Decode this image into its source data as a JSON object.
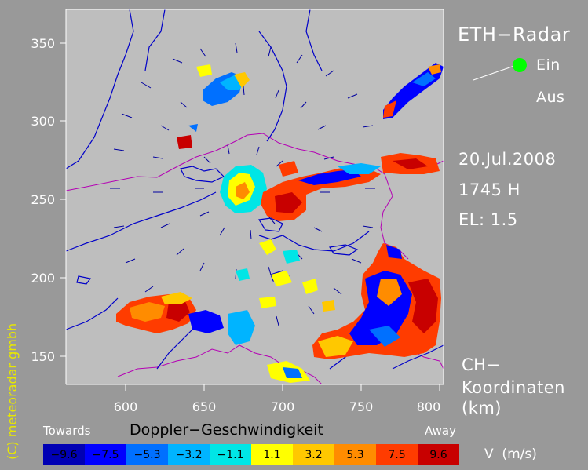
{
  "radar": {
    "title": "ETH−Radar",
    "status_on": "Ein",
    "status_off": "Aus",
    "status_active_color": "#00ff00",
    "date": "20.Jul.2008",
    "time": "1745 H",
    "elevation": "EL: 1.5",
    "coord_line1": "CH−",
    "coord_line2": "Koordinaten",
    "coord_line3": "(km)"
  },
  "axes": {
    "x_ticks": [
      "600",
      "650",
      "700",
      "750",
      "800"
    ],
    "y_ticks": [
      "350",
      "300",
      "250",
      "200",
      "150"
    ]
  },
  "legend": {
    "title": "Doppler−Geschwindigkeit",
    "left_label": "Towards",
    "right_label": "Away",
    "unit": "V  (m/s)",
    "bins": [
      {
        "label": "−9.6",
        "color": "#0000b4"
      },
      {
        "label": "−7.5",
        "color": "#0000ff"
      },
      {
        "label": "−5.3",
        "color": "#0070ff"
      },
      {
        "label": "−3.2",
        "color": "#00b4ff"
      },
      {
        "label": "−1.1",
        "color": "#00e6e6"
      },
      {
        "label": "1.1",
        "color": "#ffff00"
      },
      {
        "label": "3.2",
        "color": "#ffc800"
      },
      {
        "label": "5.3",
        "color": "#ff8c00"
      },
      {
        "label": "7.5",
        "color": "#ff3c00"
      },
      {
        "label": "9.6",
        "color": "#c80000"
      }
    ]
  },
  "credit": "(C) meteoradar gmbh"
}
